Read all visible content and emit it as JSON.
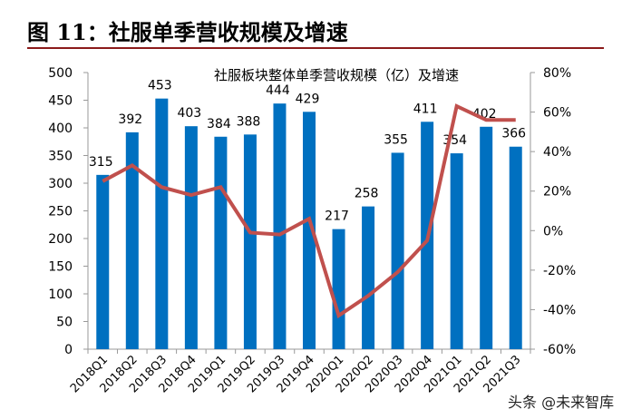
{
  "figure_title": "图 11：社服单季营收规模及增速",
  "watermark": "头条 @未来智库",
  "chart_data": {
    "type": "bar+line",
    "title": "社服板块整体单季营收规模（亿）及增速",
    "categories": [
      "2018Q1",
      "2018Q2",
      "2018Q3",
      "2018Q4",
      "2019Q1",
      "2019Q2",
      "2019Q3",
      "2019Q4",
      "2020Q1",
      "2020Q2",
      "2020Q3",
      "2020Q4",
      "2021Q1",
      "2021Q2",
      "2021Q3"
    ],
    "series": [
      {
        "type": "bar",
        "axis": "left",
        "color": "#0070c0",
        "values": [
          315,
          392,
          453,
          403,
          384,
          388,
          444,
          429,
          217,
          258,
          355,
          411,
          354,
          402,
          366
        ]
      },
      {
        "type": "line",
        "axis": "right",
        "color": "#c0504d",
        "values": [
          25,
          33,
          22,
          18,
          22,
          -1,
          -2,
          6,
          -43,
          -33,
          -21,
          -5,
          63,
          56,
          56
        ]
      }
    ],
    "left_axis": {
      "min": 0,
      "max": 500,
      "step": 50,
      "ticks": [
        "0",
        "50",
        "100",
        "150",
        "200",
        "250",
        "300",
        "350",
        "400",
        "450",
        "500"
      ]
    },
    "right_axis": {
      "min": -60,
      "max": 80,
      "step": 20,
      "ticks": [
        "-60%",
        "-40%",
        "-20%",
        "0%",
        "20%",
        "40%",
        "60%",
        "80%"
      ]
    },
    "grid": false,
    "legend": "none"
  }
}
